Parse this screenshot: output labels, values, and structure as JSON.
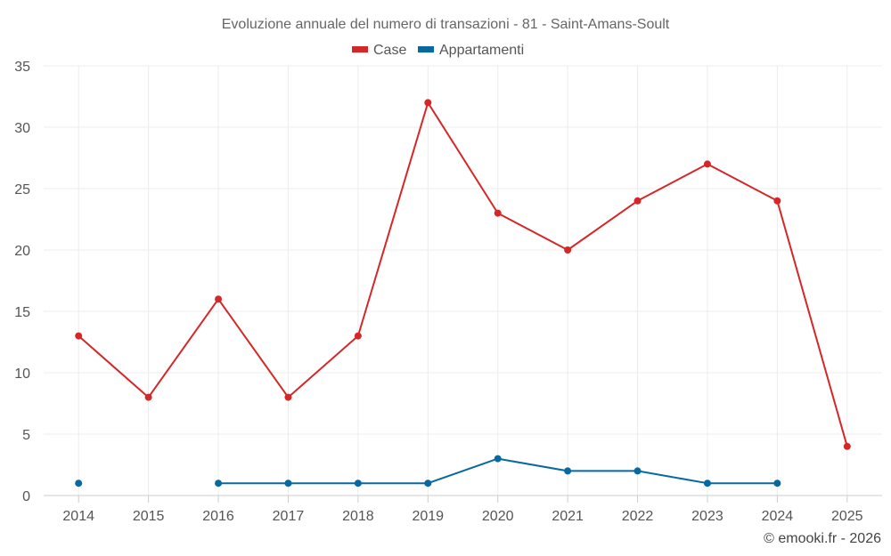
{
  "chart_data": {
    "type": "line",
    "title": "Evoluzione annuale del numero di transazioni - 81 - Saint-Amans-Soult",
    "categories": [
      "2014",
      "2015",
      "2016",
      "2017",
      "2018",
      "2019",
      "2020",
      "2021",
      "2022",
      "2023",
      "2024",
      "2025"
    ],
    "series": [
      {
        "name": "Case",
        "color": "#d62728",
        "values": [
          13,
          8,
          16,
          8,
          13,
          32,
          23,
          20,
          24,
          27,
          24,
          4
        ]
      },
      {
        "name": "Appartamenti",
        "color": "#0868a0",
        "values": [
          1,
          null,
          1,
          1,
          1,
          1,
          3,
          2,
          2,
          1,
          1,
          null
        ]
      }
    ],
    "ylim": [
      0,
      35
    ],
    "yticks": [
      0,
      5,
      10,
      15,
      20,
      25,
      30,
      35
    ],
    "grid": true,
    "legend": "top-center"
  },
  "credit": "© emooki.fr - 2026"
}
